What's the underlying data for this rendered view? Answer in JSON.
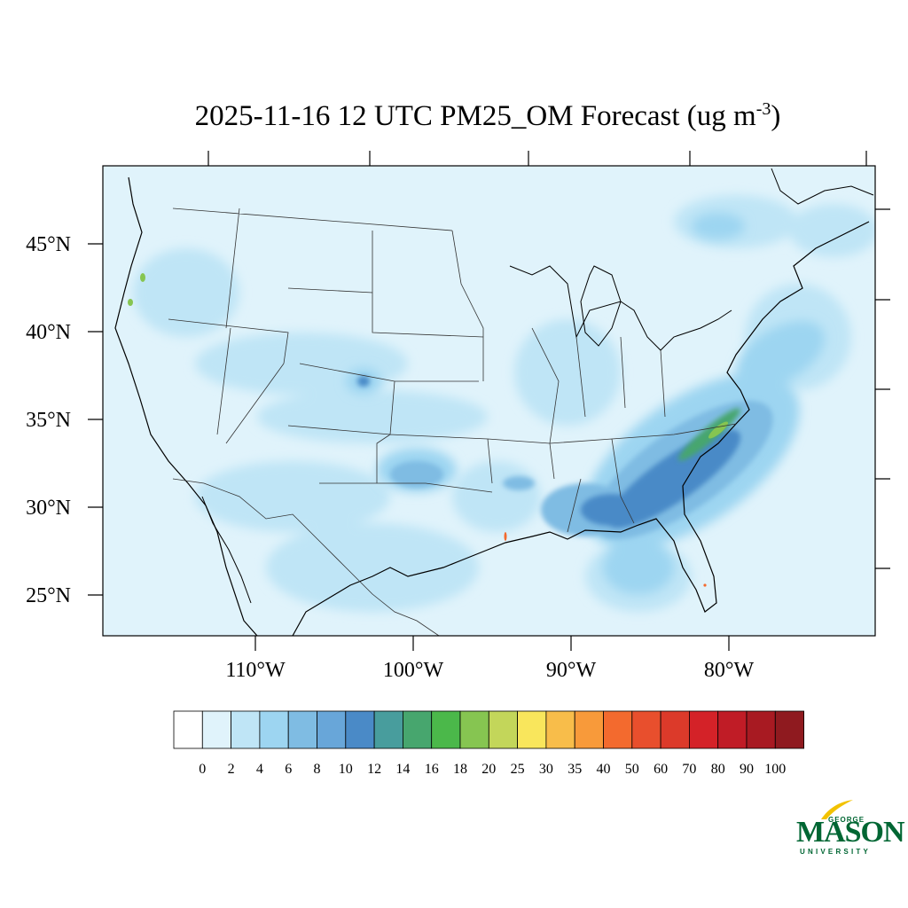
{
  "title": {
    "main": "2025-11-16 12 UTC PM25_OM Forecast (ug m",
    "sup": "-3",
    "close": ")"
  },
  "lat_labels": [
    "45°N",
    "40°N",
    "35°N",
    "30°N",
    "25°N"
  ],
  "lon_labels": [
    "110°W",
    "100°W",
    "90°W",
    "80°W"
  ],
  "colorbar": {
    "colors": [
      "#ffffff",
      "#e0f3fb",
      "#bfe5f6",
      "#9dd5f1",
      "#7fbce3",
      "#68a6d9",
      "#4a8ac7",
      "#489d9d",
      "#47a66e",
      "#4bb84a",
      "#86c551",
      "#c3d65a",
      "#f9e65c",
      "#f8bd4a",
      "#f89a3a",
      "#f36a2e",
      "#e84f2d",
      "#dc3a2a",
      "#d42228",
      "#c01c26",
      "#a81a22",
      "#8f1a1f"
    ],
    "labels": [
      "0",
      "2",
      "4",
      "6",
      "8",
      "10",
      "12",
      "14",
      "16",
      "18",
      "20",
      "25",
      "30",
      "35",
      "40",
      "50",
      "60",
      "70",
      "80",
      "90",
      "100"
    ]
  },
  "logo": {
    "top": "GEORGE",
    "name": "MASON",
    "bottom": "UNIVERSITY",
    "color": "#006633",
    "accent": "#f2c200"
  }
}
